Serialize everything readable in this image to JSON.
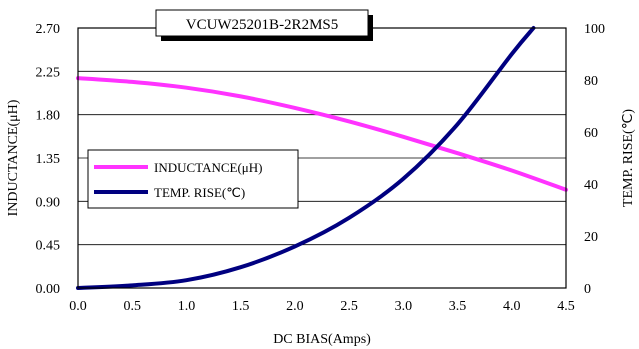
{
  "chart_data": {
    "type": "line",
    "title": "VCUW25201B-2R2MS5",
    "xlabel": "DC BIAS(Amps)",
    "ylabel_left": "INDUCTANCE(μH)",
    "ylabel_right": "TEMP. RISE(℃)",
    "xlim": [
      0,
      4.5
    ],
    "ylim_left": [
      0,
      2.7
    ],
    "ylim_right": [
      0,
      100
    ],
    "x_ticks": [
      "0.0",
      "0.5",
      "1.0",
      "1.5",
      "2.0",
      "2.5",
      "3.0",
      "3.5",
      "4.0",
      "4.5"
    ],
    "y_ticks_left": [
      "0.00",
      "0.45",
      "0.90",
      "1.35",
      "1.80",
      "2.25",
      "2.70"
    ],
    "y_ticks_right": [
      "0",
      "20",
      "40",
      "60",
      "80",
      "100"
    ],
    "grid": "horizontal",
    "legend_position": "middle-left",
    "series": [
      {
        "name": "INDUCTANCE(μH)",
        "axis": "left",
        "color": "#ff33ff",
        "x": [
          0.0,
          0.5,
          1.0,
          1.5,
          2.0,
          2.5,
          3.0,
          3.5,
          4.0,
          4.5
        ],
        "y": [
          2.18,
          2.14,
          2.08,
          1.99,
          1.87,
          1.73,
          1.57,
          1.4,
          1.22,
          1.02
        ]
      },
      {
        "name": "TEMP. RISE(℃)",
        "axis": "right",
        "color": "#000080",
        "x": [
          0.0,
          0.5,
          1.0,
          1.5,
          2.0,
          2.5,
          3.0,
          3.5,
          4.0,
          4.2
        ],
        "y": [
          0,
          1,
          3,
          8,
          16,
          27,
          42,
          63,
          90,
          100
        ]
      }
    ]
  }
}
